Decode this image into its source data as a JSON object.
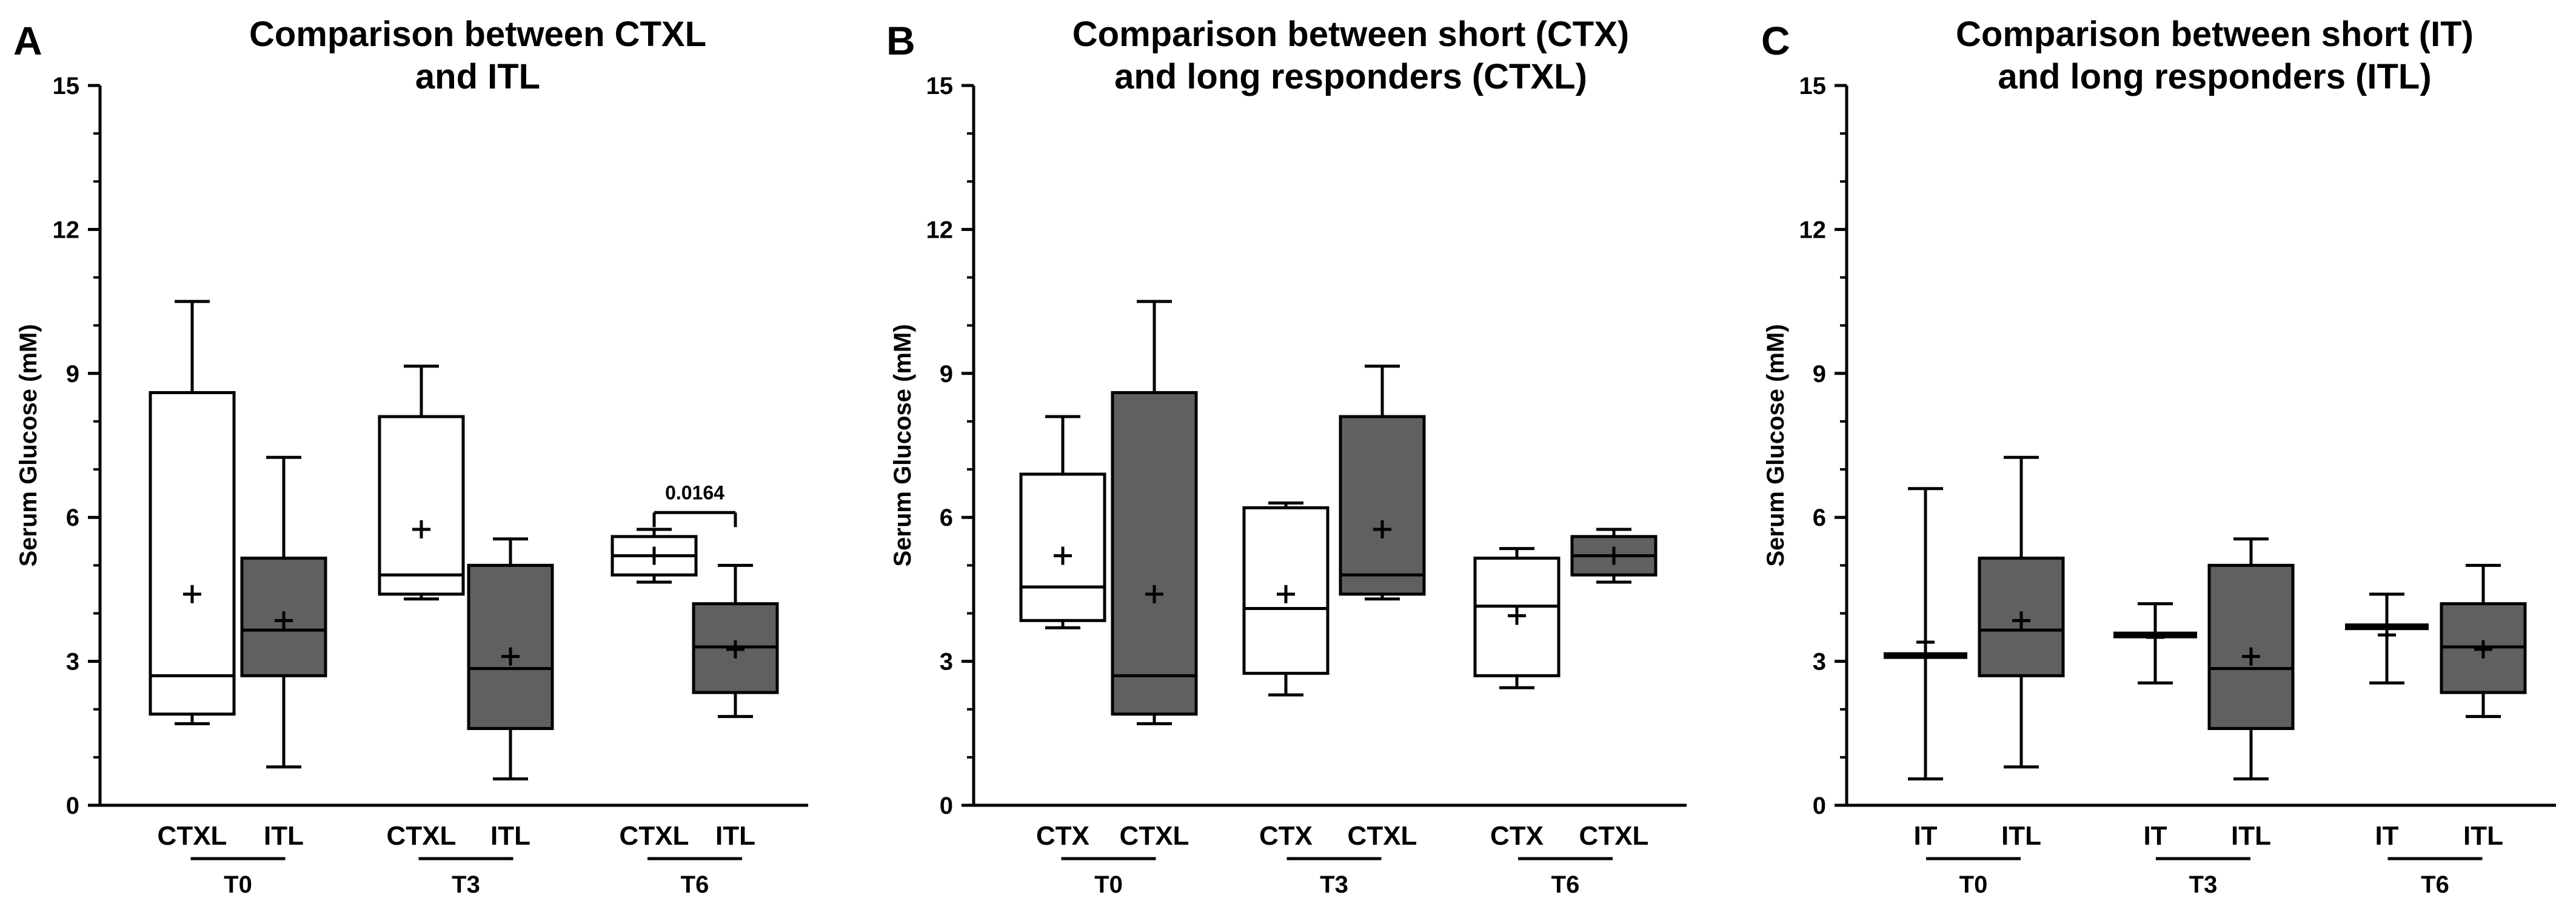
{
  "chart_data": [
    {
      "panel_letter": "A",
      "type": "box",
      "title": [
        "Comparison between CTXL",
        "and ITL"
      ],
      "ylabel": "Serum Glucose (mM)",
      "ylim": [
        0,
        15
      ],
      "yticks": [
        "0",
        "3",
        "6",
        "9",
        "12",
        "15"
      ],
      "groups": [
        {
          "label": "T0",
          "boxes": [
            {
              "label": "CTXL",
              "fill": "#ffffff",
              "min": 1.7,
              "q1": 1.9,
              "median": 2.7,
              "q3": 8.6,
              "max": 10.5,
              "mean": 4.4
            },
            {
              "label": "ITL",
              "fill": "#606060",
              "min": 0.8,
              "q1": 2.7,
              "median": 3.65,
              "q3": 5.15,
              "max": 7.25,
              "mean": 3.85
            }
          ]
        },
        {
          "label": "T3",
          "boxes": [
            {
              "label": "CTXL",
              "fill": "#ffffff",
              "min": 4.3,
              "q1": 4.4,
              "median": 4.8,
              "q3": 8.1,
              "max": 9.15,
              "mean": 5.75
            },
            {
              "label": "ITL",
              "fill": "#606060",
              "min": 0.55,
              "q1": 1.6,
              "median": 2.85,
              "q3": 5.0,
              "max": 5.55,
              "mean": 3.1
            }
          ]
        },
        {
          "label": "T6",
          "boxes": [
            {
              "label": "CTXL",
              "fill": "#ffffff",
              "min": 4.65,
              "q1": 4.8,
              "median": 5.2,
              "q3": 5.6,
              "max": 5.75,
              "mean": 5.2
            },
            {
              "label": "ITL",
              "fill": "#606060",
              "min": 1.85,
              "q1": 2.35,
              "median": 3.3,
              "q3": 4.2,
              "max": 5.0,
              "mean": 3.25
            }
          ]
        }
      ],
      "annotations": [
        {
          "text": "0.0164",
          "group": 2,
          "y_value": 6.1
        }
      ]
    },
    {
      "panel_letter": "B",
      "type": "box",
      "title": [
        "Comparison between short (CTX)",
        "and long responders (CTXL)"
      ],
      "ylabel": "Serum Glucose (mM)",
      "ylim": [
        0,
        15
      ],
      "yticks": [
        "0",
        "3",
        "6",
        "9",
        "12",
        "15"
      ],
      "groups": [
        {
          "label": "T0",
          "boxes": [
            {
              "label": "CTX",
              "fill": "#ffffff",
              "min": 3.7,
              "q1": 3.85,
              "median": 4.55,
              "q3": 6.9,
              "max": 8.1,
              "mean": 5.2
            },
            {
              "label": "CTXL",
              "fill": "#606060",
              "min": 1.7,
              "q1": 1.9,
              "median": 2.7,
              "q3": 8.6,
              "max": 10.5,
              "mean": 4.4
            }
          ]
        },
        {
          "label": "T3",
          "boxes": [
            {
              "label": "CTX",
              "fill": "#ffffff",
              "min": 2.3,
              "q1": 2.75,
              "median": 4.1,
              "q3": 6.2,
              "max": 6.3,
              "mean": 4.4
            },
            {
              "label": "CTXL",
              "fill": "#606060",
              "min": 4.3,
              "q1": 4.4,
              "median": 4.8,
              "q3": 8.1,
              "max": 9.15,
              "mean": 5.75
            }
          ]
        },
        {
          "label": "T6",
          "boxes": [
            {
              "label": "CTX",
              "fill": "#ffffff",
              "min": 2.45,
              "q1": 2.7,
              "median": 4.15,
              "q3": 5.15,
              "max": 5.35,
              "mean": 3.95
            },
            {
              "label": "CTXL",
              "fill": "#606060",
              "min": 4.65,
              "q1": 4.8,
              "median": 5.2,
              "q3": 5.6,
              "max": 5.75,
              "mean": 5.2
            }
          ]
        }
      ],
      "annotations": []
    },
    {
      "panel_letter": "C",
      "type": "box",
      "title": [
        "Comparison between short (IT)",
        "and long responders (ITL)"
      ],
      "ylabel": "Serum Glucose (mM)",
      "ylim": [
        0,
        15
      ],
      "yticks": [
        "0",
        "3",
        "6",
        "9",
        "12",
        "15"
      ],
      "groups": [
        {
          "label": "T0",
          "boxes": [
            {
              "label": "IT",
              "fill": "#ffffff",
              "min": 0.55,
              "q1": 3.12,
              "median": 3.12,
              "q3": 3.12,
              "max": 6.6,
              "mean": 3.4
            },
            {
              "label": "ITL",
              "fill": "#606060",
              "min": 0.8,
              "q1": 2.7,
              "median": 3.65,
              "q3": 5.15,
              "max": 7.25,
              "mean": 3.85
            }
          ]
        },
        {
          "label": "T3",
          "boxes": [
            {
              "label": "IT",
              "fill": "#ffffff",
              "min": 2.55,
              "q1": 3.55,
              "median": 3.55,
              "q3": 3.55,
              "max": 4.2,
              "mean": 3.5
            },
            {
              "label": "ITL",
              "fill": "#606060",
              "min": 0.55,
              "q1": 1.6,
              "median": 2.85,
              "q3": 5.0,
              "max": 5.55,
              "mean": 3.1
            }
          ]
        },
        {
          "label": "T6",
          "boxes": [
            {
              "label": "IT",
              "fill": "#ffffff",
              "min": 2.55,
              "q1": 3.72,
              "median": 3.72,
              "q3": 3.72,
              "max": 4.4,
              "mean": 3.55
            },
            {
              "label": "ITL",
              "fill": "#606060",
              "min": 1.85,
              "q1": 2.35,
              "median": 3.3,
              "q3": 4.2,
              "max": 5.0,
              "mean": 3.25
            }
          ]
        }
      ],
      "annotations": []
    }
  ]
}
